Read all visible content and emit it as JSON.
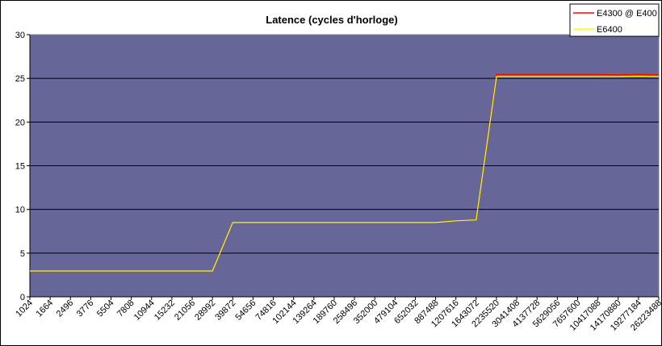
{
  "chart_data": {
    "type": "line",
    "title": "Latence (cycles d'horloge)",
    "xlabel": "",
    "ylabel": "",
    "ylim": [
      0,
      30
    ],
    "yticks": [
      0,
      5,
      10,
      15,
      20,
      25,
      30
    ],
    "grid": "horizontal",
    "legend_position": "top-right",
    "plot_bg": "#666699",
    "categories": [
      "1024",
      "1664",
      "2496",
      "3776",
      "5504",
      "7808",
      "10944",
      "15232",
      "21056",
      "28992",
      "39872",
      "54656",
      "74816",
      "102144",
      "139264",
      "189760",
      "258496",
      "352000",
      "479104",
      "652032",
      "887488",
      "1207616",
      "1643072",
      "2235520",
      "3041408",
      "4137728",
      "5629056",
      "7657600",
      "10417088",
      "14170880",
      "19277184",
      "26223488"
    ],
    "series": [
      {
        "name": "E4300 @ E400",
        "color": "#ff0000",
        "values": [
          2.95,
          2.95,
          2.95,
          2.95,
          2.95,
          2.95,
          2.95,
          2.95,
          2.95,
          2.95,
          8.5,
          8.5,
          8.5,
          8.5,
          8.5,
          8.5,
          8.5,
          8.5,
          8.5,
          8.5,
          8.5,
          8.7,
          8.8,
          25.45,
          25.45,
          25.45,
          25.45,
          25.45,
          25.45,
          25.4,
          25.45,
          25.4
        ]
      },
      {
        "name": "E6400",
        "color": "#ffff00",
        "values": [
          2.95,
          2.95,
          2.95,
          2.95,
          2.95,
          2.95,
          2.95,
          2.95,
          2.95,
          2.95,
          8.5,
          8.5,
          8.5,
          8.5,
          8.5,
          8.5,
          8.5,
          8.5,
          8.5,
          8.5,
          8.5,
          8.7,
          8.8,
          25.2,
          25.2,
          25.2,
          25.2,
          25.2,
          25.2,
          25.2,
          25.25,
          25.2
        ]
      }
    ]
  }
}
